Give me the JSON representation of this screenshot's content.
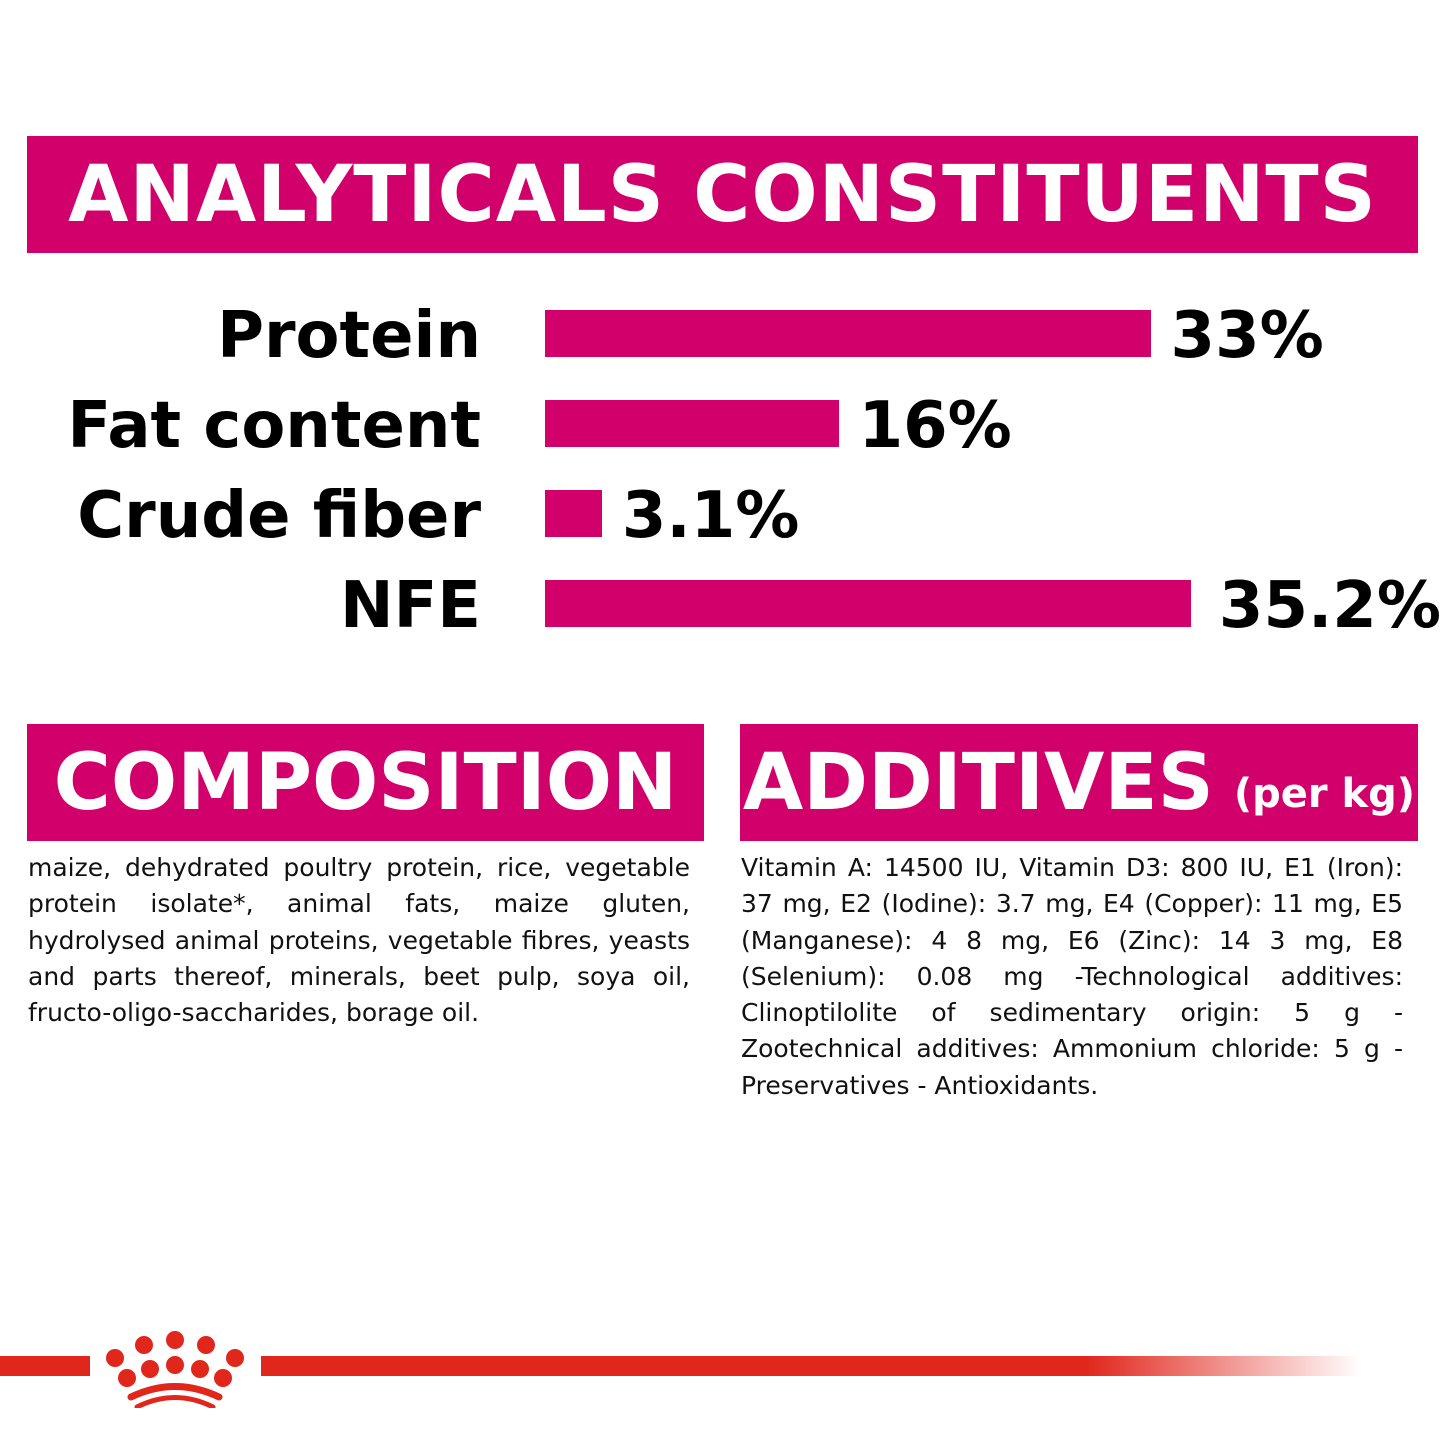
{
  "header": {
    "title": "ANALYTICALS CONSTITUENTS"
  },
  "chart_data": {
    "type": "bar",
    "orientation": "horizontal",
    "categories": [
      "Protein",
      "Fat content",
      "Crude fiber",
      "NFE"
    ],
    "values": [
      33,
      16,
      3.1,
      35.2
    ],
    "value_labels": [
      "33%",
      "16%",
      "3.1%",
      "35.2%"
    ],
    "unit": "%",
    "bar_color": "#d1006a"
  },
  "composition": {
    "title": "COMPOSITION",
    "text": "maize, dehydrated poultry protein, rice, vegetable protein isolate*, animal fats, maize gluten, hydrolysed animal proteins, vegetable fibres, yeasts and parts thereof, minerals, beet pulp, soya oil, fructo-oligo-saccharides, borage oil."
  },
  "additives": {
    "title": "ADDITIVES",
    "subtitle": "(per kg)",
    "text": "Vitamin A: 14500 IU, Vitamin D3: 800 IU, E1 (Iron): 37 mg, E2 (Iodine): 3.7 mg, E4 (Copper): 11 mg, E5 (Manganese): 4 8 mg, E6 (Zinc): 14 3 mg, E8 (Selenium): 0.08 mg -Technological additives: Clinoptilolite of sedimentary origin: 5 g - Zootechnical additives: Ammonium chloride: 5 g - Preservatives - Antioxidants."
  },
  "footer": {
    "logo": "crown-logo",
    "line_color": "#e1261c"
  }
}
